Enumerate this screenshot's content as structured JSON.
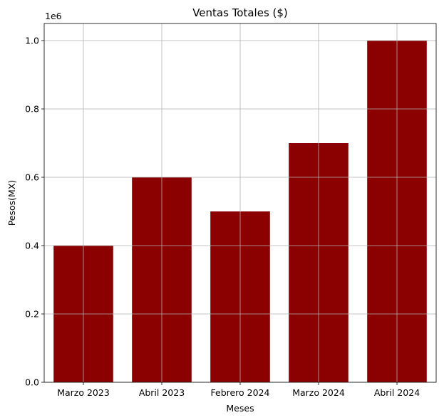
{
  "chart_data": {
    "type": "bar",
    "title": "Ventas Totales ($)",
    "xlabel": "Meses",
    "ylabel": "Pesos(MX)",
    "y_offset_label": "1e6",
    "categories": [
      "Marzo 2023",
      "Abril 2023",
      "Febrero 2024",
      "Marzo 2024",
      "Abril 2024"
    ],
    "values": [
      400000,
      600000,
      500000,
      700000,
      1000000
    ],
    "ylim": [
      0,
      1050000
    ],
    "yticks": [
      0,
      200000,
      400000,
      600000,
      800000,
      1000000
    ],
    "ytick_labels": [
      "0.0",
      "0.2",
      "0.4",
      "0.6",
      "0.8",
      "1.0"
    ],
    "bar_color": "#8b0000",
    "grid": true,
    "legend": "none"
  }
}
